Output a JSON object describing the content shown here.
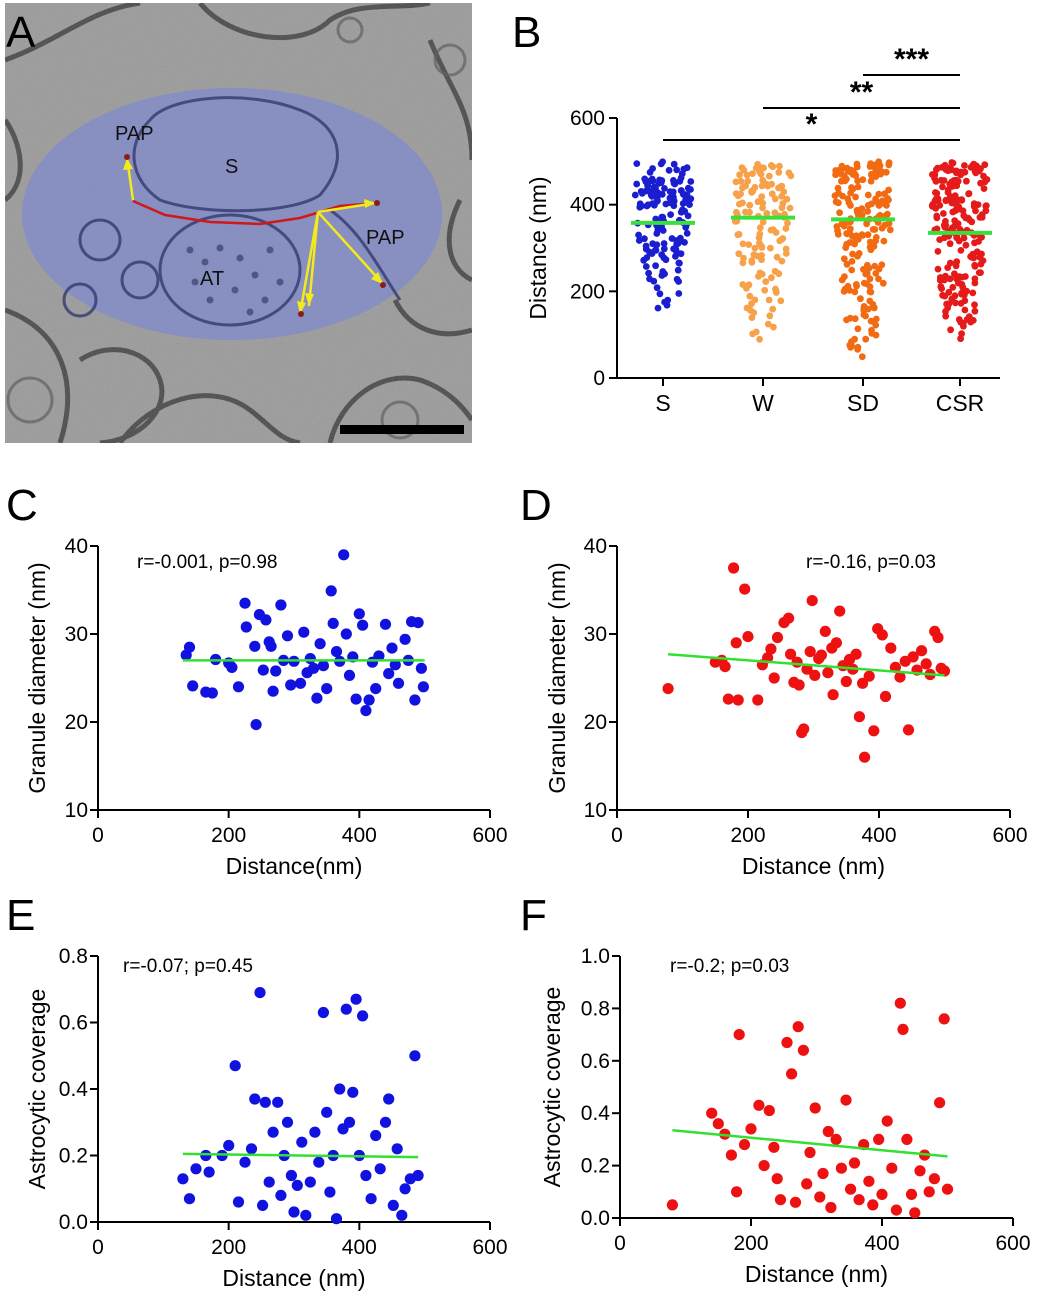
{
  "chart_data": [
    {
      "panel": "A",
      "type": "image",
      "labels": [
        "PAP",
        "S",
        "AT",
        "PAP"
      ],
      "has_scale_bar": true
    },
    {
      "panel": "B",
      "type": "scatter",
      "style": "dot-plot",
      "categories": [
        "S",
        "W",
        "SD",
        "CSR"
      ],
      "ylabel": "Distance (nm)",
      "ylim": [
        0,
        600
      ],
      "yticks": [
        0,
        200,
        400,
        600
      ],
      "series": [
        {
          "name": "S",
          "color": "#1b1ecf",
          "mean": 358,
          "n": 150,
          "min": 140,
          "max": 500
        },
        {
          "name": "W",
          "color": "#f7a14a",
          "mean": 370,
          "n": 130,
          "min": 70,
          "max": 495
        },
        {
          "name": "SD",
          "color": "#f26b13",
          "mean": 366,
          "n": 190,
          "min": 38,
          "max": 500
        },
        {
          "name": "CSR",
          "color": "#e51a1a",
          "mean": 335,
          "n": 210,
          "min": 78,
          "max": 500
        }
      ],
      "significance": [
        {
          "from": "SD",
          "to": "CSR",
          "label": "***"
        },
        {
          "from": "W",
          "to": "CSR",
          "label": "**"
        },
        {
          "from": "S",
          "to": "CSR",
          "label": "*"
        }
      ]
    },
    {
      "panel": "C",
      "type": "scatter",
      "xlabel": "Distance(nm)",
      "ylabel": "Granule diameter (nm)",
      "xlim": [
        0,
        600
      ],
      "ylim": [
        10,
        40
      ],
      "xticks": [
        0,
        200,
        400,
        600
      ],
      "yticks": [
        10,
        20,
        30,
        40
      ],
      "annotation": "r=-0.001, p=0.98",
      "color": "#1212e0",
      "fit": {
        "x": [
          130,
          500
        ],
        "y": [
          27.0,
          27.0
        ]
      },
      "points": [
        [
          135,
          27.6
        ],
        [
          140,
          28.5
        ],
        [
          145,
          24.1
        ],
        [
          165,
          23.4
        ],
        [
          175,
          23.3
        ],
        [
          180,
          27.1
        ],
        [
          200,
          26.7
        ],
        [
          205,
          26.2
        ],
        [
          215,
          24.0
        ],
        [
          225,
          33.5
        ],
        [
          227,
          30.8
        ],
        [
          240,
          28.6
        ],
        [
          242,
          19.7
        ],
        [
          247,
          32.2
        ],
        [
          253,
          25.9
        ],
        [
          257,
          31.6
        ],
        [
          262,
          29.1
        ],
        [
          265,
          28.6
        ],
        [
          268,
          23.5
        ],
        [
          272,
          25.8
        ],
        [
          280,
          33.3
        ],
        [
          284,
          27.0
        ],
        [
          290,
          29.8
        ],
        [
          295,
          24.2
        ],
        [
          300,
          26.9
        ],
        [
          310,
          24.4
        ],
        [
          315,
          30.2
        ],
        [
          320,
          25.6
        ],
        [
          325,
          27.2
        ],
        [
          330,
          26.1
        ],
        [
          335,
          22.7
        ],
        [
          340,
          28.9
        ],
        [
          345,
          26.4
        ],
        [
          350,
          23.8
        ],
        [
          357,
          34.9
        ],
        [
          360,
          31.2
        ],
        [
          365,
          28.0
        ],
        [
          370,
          26.9
        ],
        [
          376,
          39.0
        ],
        [
          380,
          30.0
        ],
        [
          385,
          25.3
        ],
        [
          390,
          27.4
        ],
        [
          395,
          22.6
        ],
        [
          400,
          32.3
        ],
        [
          405,
          31.0
        ],
        [
          410,
          21.3
        ],
        [
          415,
          22.5
        ],
        [
          420,
          26.8
        ],
        [
          425,
          23.8
        ],
        [
          430,
          27.5
        ],
        [
          440,
          31.1
        ],
        [
          445,
          25.5
        ],
        [
          450,
          28.4
        ],
        [
          455,
          26.5
        ],
        [
          460,
          24.4
        ],
        [
          470,
          29.4
        ],
        [
          475,
          27.0
        ],
        [
          480,
          31.4
        ],
        [
          485,
          22.5
        ],
        [
          490,
          31.3
        ],
        [
          495,
          26.1
        ],
        [
          498,
          24.0
        ]
      ]
    },
    {
      "panel": "D",
      "type": "scatter",
      "xlabel": "Distance (nm)",
      "ylabel": "Granule diameter (nm)",
      "xlim": [
        0,
        600
      ],
      "ylim": [
        10,
        40
      ],
      "xticks": [
        0,
        200,
        400,
        600
      ],
      "yticks": [
        10,
        20,
        30,
        40
      ],
      "annotation": "r=-0.16, p=0.03",
      "color": "#ee1111",
      "fit": {
        "x": [
          78,
          500
        ],
        "y": [
          27.7,
          25.3
        ]
      },
      "points": [
        [
          78,
          23.8
        ],
        [
          150,
          26.8
        ],
        [
          160,
          27.0
        ],
        [
          165,
          26.3
        ],
        [
          170,
          22.6
        ],
        [
          178,
          37.5
        ],
        [
          182,
          29.0
        ],
        [
          185,
          22.5
        ],
        [
          195,
          35.1
        ],
        [
          200,
          29.7
        ],
        [
          215,
          22.5
        ],
        [
          222,
          26.5
        ],
        [
          230,
          27.3
        ],
        [
          235,
          28.3
        ],
        [
          240,
          25.0
        ],
        [
          245,
          29.6
        ],
        [
          255,
          31.3
        ],
        [
          262,
          31.8
        ],
        [
          265,
          27.7
        ],
        [
          270,
          24.5
        ],
        [
          275,
          26.8
        ],
        [
          278,
          24.2
        ],
        [
          282,
          18.8
        ],
        [
          285,
          19.2
        ],
        [
          290,
          26.0
        ],
        [
          295,
          28.0
        ],
        [
          298,
          33.8
        ],
        [
          302,
          25.3
        ],
        [
          308,
          27.2
        ],
        [
          312,
          27.6
        ],
        [
          318,
          30.3
        ],
        [
          322,
          25.6
        ],
        [
          328,
          28.4
        ],
        [
          330,
          23.1
        ],
        [
          335,
          29.0
        ],
        [
          340,
          32.6
        ],
        [
          345,
          26.4
        ],
        [
          350,
          24.6
        ],
        [
          355,
          27.1
        ],
        [
          360,
          26.0
        ],
        [
          365,
          27.7
        ],
        [
          370,
          20.6
        ],
        [
          375,
          24.4
        ],
        [
          378,
          16.0
        ],
        [
          385,
          25.2
        ],
        [
          392,
          19.0
        ],
        [
          398,
          30.6
        ],
        [
          405,
          29.9
        ],
        [
          410,
          22.9
        ],
        [
          418,
          28.4
        ],
        [
          425,
          26.2
        ],
        [
          432,
          25.1
        ],
        [
          440,
          26.9
        ],
        [
          445,
          19.1
        ],
        [
          452,
          27.4
        ],
        [
          458,
          25.9
        ],
        [
          465,
          28.1
        ],
        [
          472,
          26.6
        ],
        [
          478,
          25.4
        ],
        [
          485,
          30.3
        ],
        [
          490,
          29.6
        ],
        [
          495,
          26.1
        ],
        [
          500,
          25.8
        ]
      ]
    },
    {
      "panel": "E",
      "type": "scatter",
      "xlabel": "Distance (nm)",
      "ylabel": "Astrocytic coverage",
      "xlim": [
        0,
        600
      ],
      "ylim": [
        0.0,
        0.8
      ],
      "xticks": [
        0,
        200,
        400,
        600
      ],
      "yticks": [
        0.0,
        0.2,
        0.4,
        0.6,
        0.8
      ],
      "annotation": "r=-0.07; p=0.45",
      "color": "#1212e0",
      "fit": {
        "x": [
          130,
          490
        ],
        "y": [
          0.205,
          0.195
        ]
      },
      "points": [
        [
          130,
          0.13
        ],
        [
          140,
          0.07
        ],
        [
          150,
          0.16
        ],
        [
          165,
          0.2
        ],
        [
          170,
          0.15
        ],
        [
          190,
          0.2
        ],
        [
          200,
          0.23
        ],
        [
          210,
          0.47
        ],
        [
          215,
          0.06
        ],
        [
          225,
          0.18
        ],
        [
          235,
          0.22
        ],
        [
          240,
          0.37
        ],
        [
          248,
          0.69
        ],
        [
          252,
          0.05
        ],
        [
          256,
          0.36
        ],
        [
          262,
          0.12
        ],
        [
          268,
          0.27
        ],
        [
          275,
          0.36
        ],
        [
          280,
          0.08
        ],
        [
          285,
          0.2
        ],
        [
          290,
          0.3
        ],
        [
          296,
          0.14
        ],
        [
          300,
          0.03
        ],
        [
          305,
          0.11
        ],
        [
          312,
          0.24
        ],
        [
          318,
          0.02
        ],
        [
          325,
          0.12
        ],
        [
          332,
          0.27
        ],
        [
          338,
          0.18
        ],
        [
          345,
          0.63
        ],
        [
          350,
          0.33
        ],
        [
          355,
          0.09
        ],
        [
          360,
          0.2
        ],
        [
          365,
          0.01
        ],
        [
          370,
          0.4
        ],
        [
          375,
          0.28
        ],
        [
          380,
          0.64
        ],
        [
          385,
          0.3
        ],
        [
          390,
          0.39
        ],
        [
          395,
          0.67
        ],
        [
          400,
          0.2
        ],
        [
          405,
          0.62
        ],
        [
          410,
          0.14
        ],
        [
          418,
          0.07
        ],
        [
          425,
          0.26
        ],
        [
          432,
          0.16
        ],
        [
          440,
          0.3
        ],
        [
          445,
          0.37
        ],
        [
          452,
          0.05
        ],
        [
          458,
          0.22
        ],
        [
          465,
          0.02
        ],
        [
          470,
          0.1
        ],
        [
          478,
          0.13
        ],
        [
          485,
          0.5
        ],
        [
          490,
          0.14
        ]
      ]
    },
    {
      "panel": "F",
      "type": "scatter",
      "xlabel": "Distance (nm)",
      "ylabel": "Astrocytic coverage",
      "xlim": [
        0,
        600
      ],
      "ylim": [
        0.0,
        1.0
      ],
      "xticks": [
        0,
        200,
        400,
        600
      ],
      "yticks": [
        0.0,
        0.2,
        0.4,
        0.6,
        0.8,
        1.0
      ],
      "annotation": "r=-0.2; p=0.03",
      "color": "#ee1111",
      "fit": {
        "x": [
          80,
          500
        ],
        "y": [
          0.335,
          0.235
        ]
      },
      "points": [
        [
          80,
          0.05
        ],
        [
          140,
          0.4
        ],
        [
          150,
          0.36
        ],
        [
          160,
          0.32
        ],
        [
          170,
          0.24
        ],
        [
          178,
          0.1
        ],
        [
          182,
          0.7
        ],
        [
          190,
          0.28
        ],
        [
          200,
          0.34
        ],
        [
          212,
          0.43
        ],
        [
          220,
          0.2
        ],
        [
          228,
          0.41
        ],
        [
          235,
          0.27
        ],
        [
          240,
          0.15
        ],
        [
          245,
          0.07
        ],
        [
          255,
          0.67
        ],
        [
          262,
          0.55
        ],
        [
          268,
          0.06
        ],
        [
          272,
          0.73
        ],
        [
          280,
          0.64
        ],
        [
          285,
          0.13
        ],
        [
          290,
          0.25
        ],
        [
          298,
          0.42
        ],
        [
          305,
          0.08
        ],
        [
          310,
          0.17
        ],
        [
          318,
          0.33
        ],
        [
          322,
          0.04
        ],
        [
          330,
          0.3
        ],
        [
          338,
          0.19
        ],
        [
          345,
          0.45
        ],
        [
          352,
          0.11
        ],
        [
          358,
          0.21
        ],
        [
          365,
          0.07
        ],
        [
          372,
          0.28
        ],
        [
          380,
          0.14
        ],
        [
          386,
          0.05
        ],
        [
          395,
          0.3
        ],
        [
          400,
          0.09
        ],
        [
          408,
          0.37
        ],
        [
          415,
          0.19
        ],
        [
          422,
          0.03
        ],
        [
          428,
          0.82
        ],
        [
          432,
          0.72
        ],
        [
          438,
          0.3
        ],
        [
          445,
          0.09
        ],
        [
          450,
          0.02
        ],
        [
          458,
          0.18
        ],
        [
          465,
          0.24
        ],
        [
          472,
          0.1
        ],
        [
          480,
          0.15
        ],
        [
          488,
          0.44
        ],
        [
          495,
          0.76
        ],
        [
          500,
          0.11
        ]
      ]
    }
  ]
}
